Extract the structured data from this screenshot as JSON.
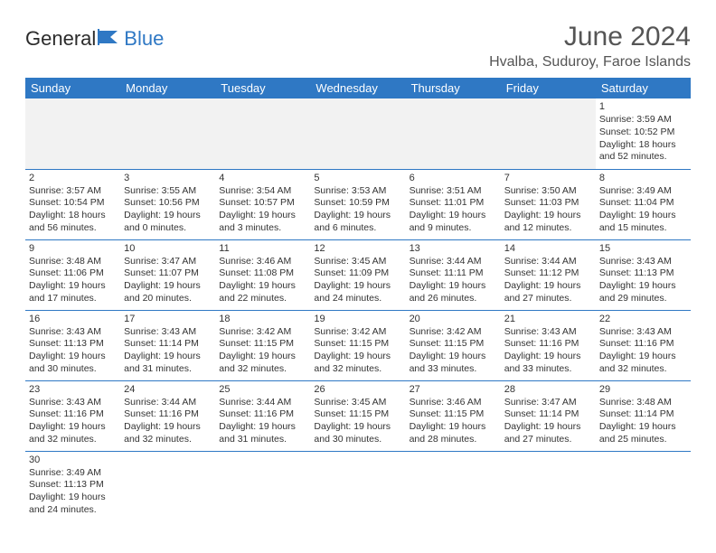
{
  "logo": {
    "text1": "General",
    "text2": "Blue"
  },
  "title": "June 2024",
  "location": "Hvalba, Suduroy, Faroe Islands",
  "colors": {
    "header_bg": "#2f78c4",
    "header_text": "#ffffff",
    "cell_border": "#2f78c4",
    "empty_bg": "#f2f2f2",
    "page_bg": "#ffffff",
    "text": "#333333",
    "title_text": "#555555"
  },
  "weekday_headers": [
    "Sunday",
    "Monday",
    "Tuesday",
    "Wednesday",
    "Thursday",
    "Friday",
    "Saturday"
  ],
  "weeks": [
    [
      null,
      null,
      null,
      null,
      null,
      null,
      {
        "n": "1",
        "sunrise": "3:59 AM",
        "sunset": "10:52 PM",
        "daylight": "18 hours and 52 minutes."
      }
    ],
    [
      {
        "n": "2",
        "sunrise": "3:57 AM",
        "sunset": "10:54 PM",
        "daylight": "18 hours and 56 minutes."
      },
      {
        "n": "3",
        "sunrise": "3:55 AM",
        "sunset": "10:56 PM",
        "daylight": "19 hours and 0 minutes."
      },
      {
        "n": "4",
        "sunrise": "3:54 AM",
        "sunset": "10:57 PM",
        "daylight": "19 hours and 3 minutes."
      },
      {
        "n": "5",
        "sunrise": "3:53 AM",
        "sunset": "10:59 PM",
        "daylight": "19 hours and 6 minutes."
      },
      {
        "n": "6",
        "sunrise": "3:51 AM",
        "sunset": "11:01 PM",
        "daylight": "19 hours and 9 minutes."
      },
      {
        "n": "7",
        "sunrise": "3:50 AM",
        "sunset": "11:03 PM",
        "daylight": "19 hours and 12 minutes."
      },
      {
        "n": "8",
        "sunrise": "3:49 AM",
        "sunset": "11:04 PM",
        "daylight": "19 hours and 15 minutes."
      }
    ],
    [
      {
        "n": "9",
        "sunrise": "3:48 AM",
        "sunset": "11:06 PM",
        "daylight": "19 hours and 17 minutes."
      },
      {
        "n": "10",
        "sunrise": "3:47 AM",
        "sunset": "11:07 PM",
        "daylight": "19 hours and 20 minutes."
      },
      {
        "n": "11",
        "sunrise": "3:46 AM",
        "sunset": "11:08 PM",
        "daylight": "19 hours and 22 minutes."
      },
      {
        "n": "12",
        "sunrise": "3:45 AM",
        "sunset": "11:09 PM",
        "daylight": "19 hours and 24 minutes."
      },
      {
        "n": "13",
        "sunrise": "3:44 AM",
        "sunset": "11:11 PM",
        "daylight": "19 hours and 26 minutes."
      },
      {
        "n": "14",
        "sunrise": "3:44 AM",
        "sunset": "11:12 PM",
        "daylight": "19 hours and 27 minutes."
      },
      {
        "n": "15",
        "sunrise": "3:43 AM",
        "sunset": "11:13 PM",
        "daylight": "19 hours and 29 minutes."
      }
    ],
    [
      {
        "n": "16",
        "sunrise": "3:43 AM",
        "sunset": "11:13 PM",
        "daylight": "19 hours and 30 minutes."
      },
      {
        "n": "17",
        "sunrise": "3:43 AM",
        "sunset": "11:14 PM",
        "daylight": "19 hours and 31 minutes."
      },
      {
        "n": "18",
        "sunrise": "3:42 AM",
        "sunset": "11:15 PM",
        "daylight": "19 hours and 32 minutes."
      },
      {
        "n": "19",
        "sunrise": "3:42 AM",
        "sunset": "11:15 PM",
        "daylight": "19 hours and 32 minutes."
      },
      {
        "n": "20",
        "sunrise": "3:42 AM",
        "sunset": "11:15 PM",
        "daylight": "19 hours and 33 minutes."
      },
      {
        "n": "21",
        "sunrise": "3:43 AM",
        "sunset": "11:16 PM",
        "daylight": "19 hours and 33 minutes."
      },
      {
        "n": "22",
        "sunrise": "3:43 AM",
        "sunset": "11:16 PM",
        "daylight": "19 hours and 32 minutes."
      }
    ],
    [
      {
        "n": "23",
        "sunrise": "3:43 AM",
        "sunset": "11:16 PM",
        "daylight": "19 hours and 32 minutes."
      },
      {
        "n": "24",
        "sunrise": "3:44 AM",
        "sunset": "11:16 PM",
        "daylight": "19 hours and 32 minutes."
      },
      {
        "n": "25",
        "sunrise": "3:44 AM",
        "sunset": "11:16 PM",
        "daylight": "19 hours and 31 minutes."
      },
      {
        "n": "26",
        "sunrise": "3:45 AM",
        "sunset": "11:15 PM",
        "daylight": "19 hours and 30 minutes."
      },
      {
        "n": "27",
        "sunrise": "3:46 AM",
        "sunset": "11:15 PM",
        "daylight": "19 hours and 28 minutes."
      },
      {
        "n": "28",
        "sunrise": "3:47 AM",
        "sunset": "11:14 PM",
        "daylight": "19 hours and 27 minutes."
      },
      {
        "n": "29",
        "sunrise": "3:48 AM",
        "sunset": "11:14 PM",
        "daylight": "19 hours and 25 minutes."
      }
    ],
    [
      {
        "n": "30",
        "sunrise": "3:49 AM",
        "sunset": "11:13 PM",
        "daylight": "19 hours and 24 minutes."
      },
      null,
      null,
      null,
      null,
      null,
      null
    ]
  ],
  "labels": {
    "sunrise_prefix": "Sunrise: ",
    "sunset_prefix": "Sunset: ",
    "daylight_prefix": "Daylight: "
  }
}
